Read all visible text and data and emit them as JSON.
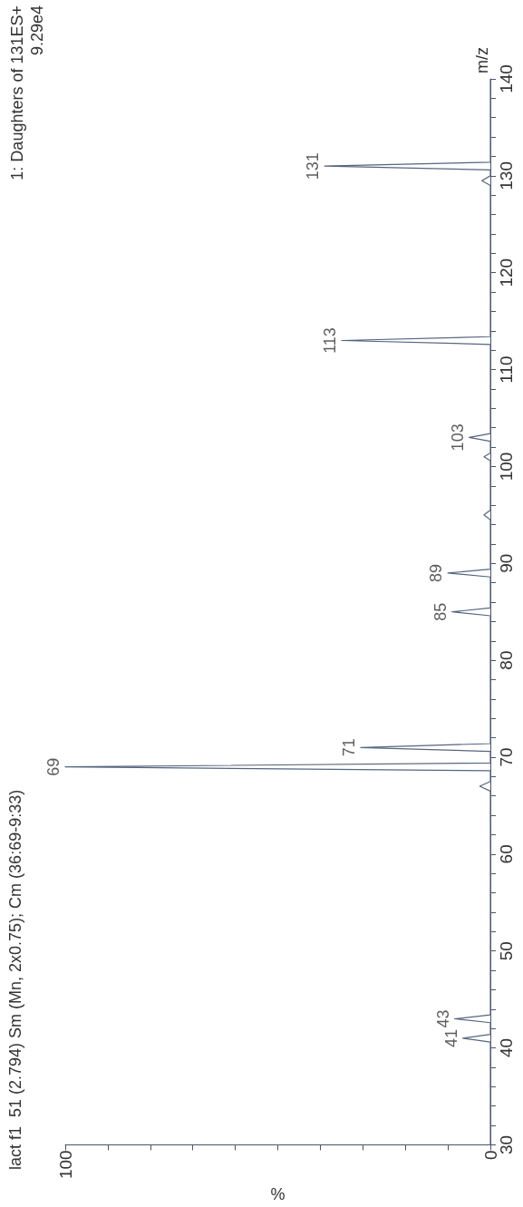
{
  "chart_data": {
    "type": "line",
    "title": "lact f1  51 (2.794) Sm (Mn, 2x0.75); Cm (36:69-9:33)",
    "xlabel": "%",
    "ylabel": "m/z",
    "color": "#56657e",
    "marker": "none",
    "x": [
      0,
      0,
      6.5,
      0,
      0,
      8.4,
      0,
      0,
      2.5,
      0,
      0,
      100,
      0,
      0,
      30.5,
      0,
      0,
      9,
      0,
      0,
      10,
      0,
      0,
      1.5,
      0,
      0,
      1.5,
      0,
      0,
      5,
      0,
      0,
      35,
      0,
      0,
      2,
      0,
      0,
      39,
      0,
      0
    ],
    "values": [
      30,
      40.6,
      41,
      41.4,
      42.6,
      43,
      43.4,
      66.5,
      67,
      67.5,
      68.6,
      69,
      69.4,
      70.6,
      71,
      71.4,
      84.6,
      85,
      85.4,
      88.6,
      89,
      89.4,
      94.5,
      95,
      95.5,
      100.6,
      101,
      101.4,
      102.6,
      103,
      103.4,
      112.6,
      113,
      113.4,
      129,
      129.5,
      130,
      130.6,
      131,
      131.4,
      140
    ],
    "annotations": [
      "1: Daughters of 131ES+",
      "9.29e4",
      {
        "text": "41",
        "x": 6.5,
        "y": 41
      },
      {
        "text": "43",
        "x": 8.4,
        "y": 43
      },
      {
        "text": "69",
        "x": 100,
        "y": 69
      },
      {
        "text": "71",
        "x": 30.5,
        "y": 71
      },
      {
        "text": "85",
        "x": 9,
        "y": 85
      },
      {
        "text": "89",
        "x": 10,
        "y": 89
      },
      {
        "text": "103",
        "x": 5,
        "y": 103
      },
      {
        "text": "113",
        "x": 35,
        "y": 113
      },
      {
        "text": "131",
        "x": 39,
        "y": 131
      }
    ],
    "ylim": [
      30,
      140
    ],
    "xlim": [
      100,
      0
    ],
    "yticks": [
      30,
      {
        "value": 32,
        "label": null
      },
      {
        "value": 34,
        "label": null
      },
      {
        "value": 36,
        "label": null
      },
      {
        "value": 38,
        "label": null
      },
      40,
      {
        "value": 42,
        "label": null
      },
      {
        "value": 44,
        "label": null
      },
      {
        "value": 46,
        "label": null
      },
      {
        "value": 48,
        "label": null
      },
      50,
      {
        "value": 52,
        "label": null
      },
      {
        "value": 54,
        "label": null
      },
      {
        "value": 56,
        "label": null
      },
      {
        "value": 58,
        "label": null
      },
      60,
      {
        "value": 62,
        "label": null
      },
      {
        "value": 64,
        "label": null
      },
      {
        "value": 66,
        "label": null
      },
      {
        "value": 68,
        "label": null
      },
      70,
      {
        "value": 72,
        "label": null
      },
      {
        "value": 74,
        "label": null
      },
      {
        "value": 76,
        "label": null
      },
      {
        "value": 78,
        "label": null
      },
      80,
      {
        "value": 82,
        "label": null
      },
      {
        "value": 84,
        "label": null
      },
      {
        "value": 86,
        "label": null
      },
      {
        "value": 88,
        "label": null
      },
      90,
      {
        "value": 92,
        "label": null
      },
      {
        "value": 94,
        "label": null
      },
      {
        "value": 96,
        "label": null
      },
      {
        "value": 98,
        "label": null
      },
      100,
      {
        "value": 102,
        "label": null
      },
      {
        "value": 104,
        "label": null
      },
      {
        "value": 106,
        "label": null
      },
      {
        "value": 108,
        "label": null
      },
      110,
      {
        "value": 112,
        "label": null
      },
      {
        "value": 114,
        "label": null
      },
      {
        "value": 116,
        "label": null
      },
      {
        "value": 118,
        "label": null
      },
      120,
      {
        "value": 122,
        "label": null
      },
      {
        "value": 124,
        "label": null
      },
      {
        "value": 126,
        "label": null
      },
      {
        "value": 128,
        "label": null
      },
      130,
      {
        "value": 132,
        "label": null
      },
      {
        "value": 134,
        "label": null
      },
      {
        "value": 136,
        "label": null
      },
      {
        "value": 138,
        "label": null
      },
      140
    ],
    "xticks": [
      0,
      {
        "value": 10,
        "label": null
      },
      {
        "value": 20,
        "label": null
      },
      {
        "value": 30,
        "label": null
      },
      {
        "value": 40,
        "label": null
      },
      {
        "value": 50,
        "label": null
      },
      {
        "value": 60,
        "label": null
      },
      {
        "value": 70,
        "label": null
      },
      {
        "value": 80,
        "label": null
      },
      {
        "value": 90,
        "label": null
      },
      100
    ]
  }
}
